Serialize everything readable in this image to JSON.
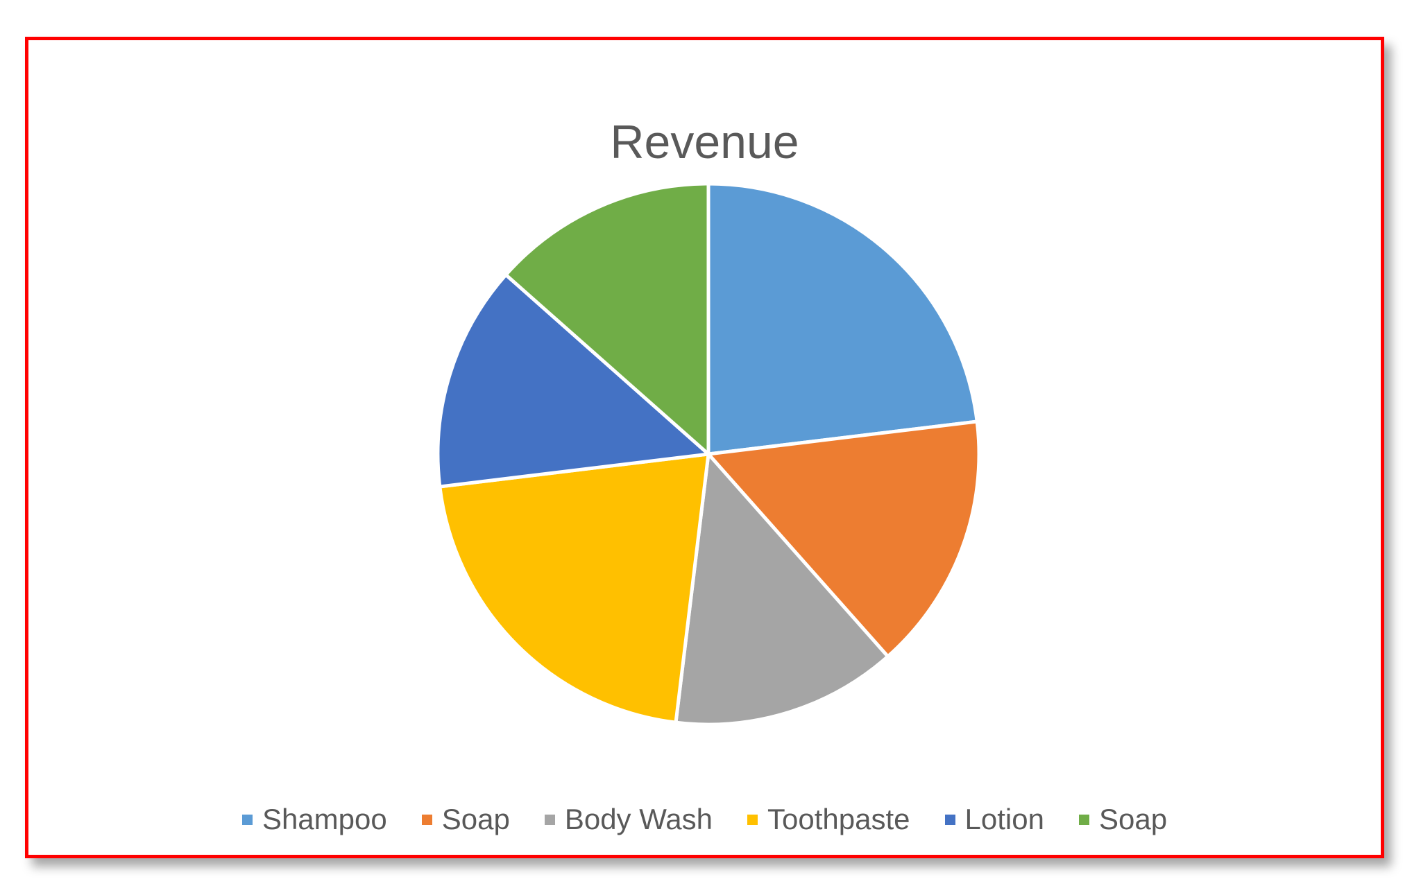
{
  "chart_data": {
    "type": "pie",
    "title": "Revenue",
    "legend_position": "bottom",
    "categories": [
      "Shampoo",
      "Soap",
      "Body Wash",
      "Toothpaste",
      "Lotion",
      "Soap"
    ],
    "values": [
      24,
      16,
      14,
      22,
      14,
      14
    ],
    "colors": [
      "#5B9BD5",
      "#ED7D31",
      "#A5A5A5",
      "#FFC000",
      "#4472C4",
      "#70AD47"
    ]
  },
  "frame": {
    "border_color": "#ff0000"
  }
}
